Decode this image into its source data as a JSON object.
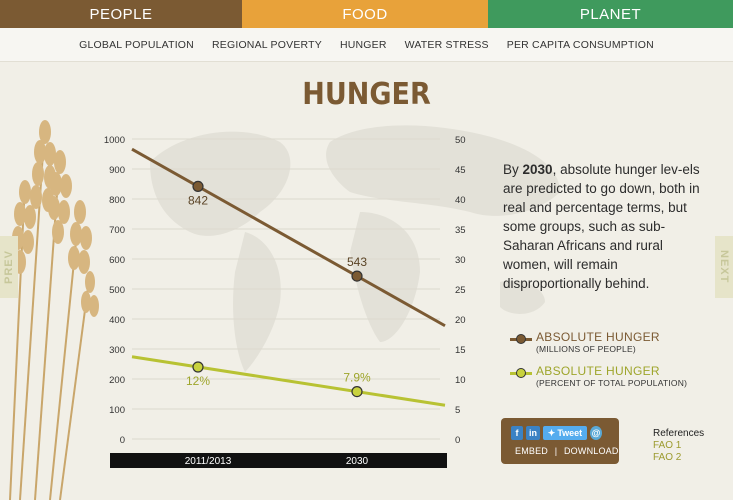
{
  "tabs": [
    {
      "label": "PEOPLE"
    },
    {
      "label": "FOOD"
    },
    {
      "label": "PLANET"
    }
  ],
  "subnav": [
    "GLOBAL POPULATION",
    "REGIONAL POVERTY",
    "HUNGER",
    "WATER STRESS",
    "PER CAPITA CONSUMPTION"
  ],
  "title": "HUNGER",
  "side": {
    "prev": "PREV",
    "next": "NEXT"
  },
  "description": {
    "year": "2030",
    "before": "By ",
    "after": ", absolute hunger lev-els are predicted to go down, both in real and percentage terms, but some groups, such as sub-Saharan Africans and rural women, will remain disproportionally behind."
  },
  "legend": {
    "absolute_title": "ABSOLUTE HUNGER",
    "absolute_sub": "(MILLIONS OF PEOPLE)",
    "percent_title": "ABSOLUTE HUNGER",
    "percent_sub": "(PERCENT OF TOTAL POPULATION)"
  },
  "share": {
    "tweet": "Tweet",
    "embed": "EMBED",
    "separator": "|",
    "download": "DOWNLOAD"
  },
  "references": {
    "heading": "References",
    "items": [
      "FAO 1",
      "FAO 2"
    ]
  },
  "colors": {
    "brown": "#7b5a33",
    "orange": "#e8a23a",
    "green": "#3f9a5d",
    "series_brown": "#7b5a33",
    "series_yellow": "#b8c233"
  },
  "chart_data": {
    "type": "line",
    "categories": [
      "2011/2013",
      "2030"
    ],
    "y_left": {
      "ticks": [
        0,
        100,
        200,
        300,
        400,
        500,
        600,
        700,
        800,
        900,
        1000
      ],
      "range": [
        0,
        1000
      ]
    },
    "y_right": {
      "ticks": [
        0,
        5,
        10,
        15,
        20,
        25,
        30,
        35,
        40,
        45,
        50
      ],
      "range": [
        0,
        50
      ]
    },
    "series": [
      {
        "name": "ABSOLUTE HUNGER (MILLIONS OF PEOPLE)",
        "axis": "left",
        "values": [
          842,
          543
        ],
        "labels": [
          "842",
          "543"
        ]
      },
      {
        "name": "ABSOLUTE HUNGER (PERCENT OF TOTAL POPULATION)",
        "axis": "right",
        "values": [
          12,
          7.9
        ],
        "labels": [
          "12%",
          "7.9%"
        ]
      }
    ]
  }
}
